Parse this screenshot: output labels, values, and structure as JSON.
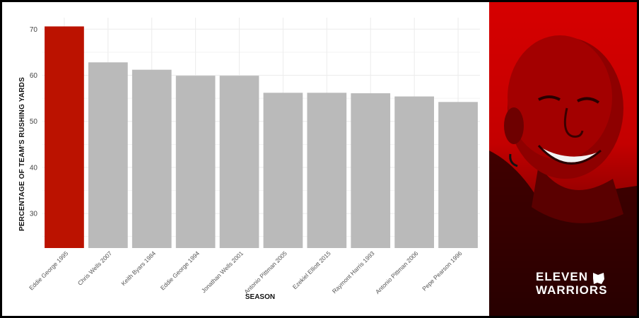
{
  "chart_data": {
    "type": "bar",
    "title": "",
    "xlabel": "SEASON",
    "ylabel": "PERCENTAGE OF TEAM'S RUSHING YARDS",
    "categories": [
      "Eddie George 1995",
      "Chris Wells 2007",
      "Keith Byars 1984",
      "Eddie George 1994",
      "Jonathan Wells 2001",
      "Antonio Pittman 2005",
      "Ezekiel Elliott 2015",
      "Raymont Harris 1993",
      "Antonio Pittman 2006",
      "Pepe Pearson 1996"
    ],
    "values": [
      70.6,
      62.8,
      61.2,
      59.9,
      59.9,
      56.2,
      56.2,
      56.1,
      55.4,
      54.2
    ],
    "highlight_index": 0,
    "ylim": [
      22.5,
      72.5
    ],
    "yticks": [
      30,
      40,
      50,
      60,
      70
    ],
    "grid": true,
    "colors": {
      "highlight": "#bb1200",
      "default": "#bababa",
      "grid": "#ececec"
    }
  },
  "brand": {
    "line1": "ELEVEN",
    "line2": "WARRIORS"
  },
  "photo_icon": "smiling-man-portrait"
}
